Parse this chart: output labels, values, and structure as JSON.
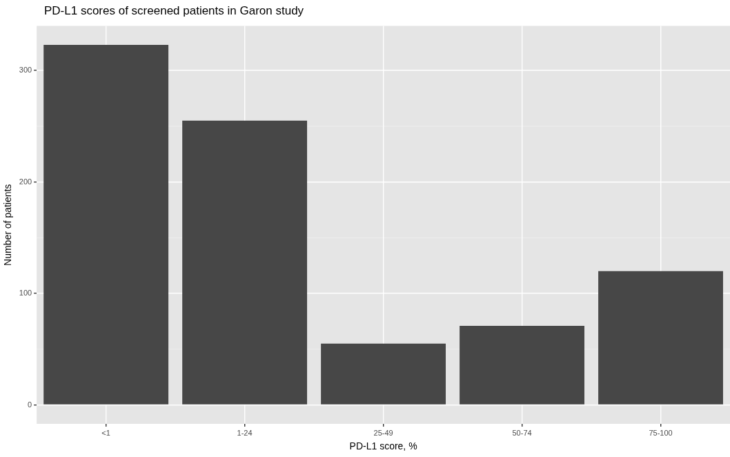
{
  "chart_data": {
    "type": "bar",
    "title": "PD-L1 scores of screened patients in Garon study",
    "xlabel": "PD-L1 score, %",
    "ylabel": "Number of patients",
    "categories": [
      "<1",
      "1-24",
      "25-49",
      "50-74",
      "75-100"
    ],
    "values": [
      323,
      255,
      55,
      71,
      120
    ],
    "color": "#474747",
    "ylim": [
      -17,
      340
    ],
    "yticks": [
      0,
      100,
      200,
      300
    ],
    "grid": true
  }
}
